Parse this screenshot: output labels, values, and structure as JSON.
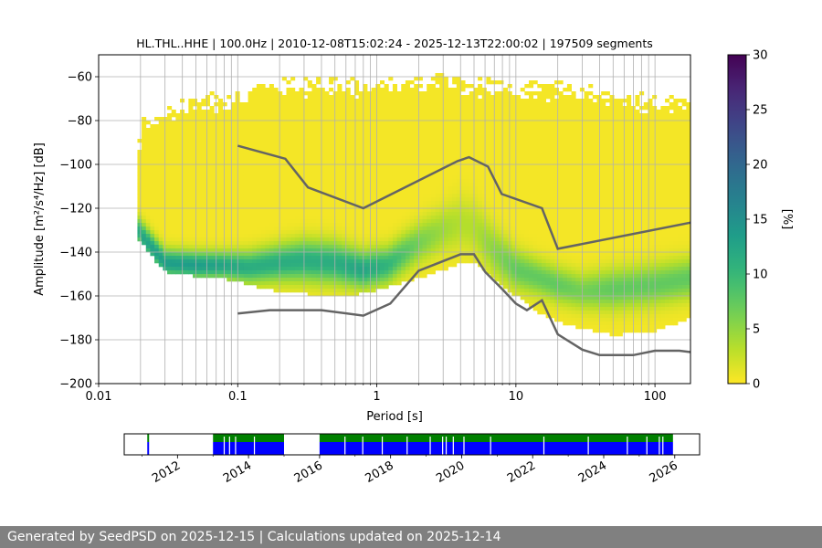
{
  "footer": {
    "text": "Generated by SeedPSD on 2025-12-15 | Calculations updated on 2025-12-14"
  },
  "chart_data": [
    {
      "type": "heatmap",
      "title": "HL.THL..HHE | 100.0Hz | 2010-12-08T15:02:24 - 2025-12-13T22:00:02 | 197509 segments",
      "xlabel": "Period [s]",
      "ylabel": "Amplitude [m²/s⁴/Hz] [dB]",
      "x_scale": "log",
      "xlim": [
        0.01,
        180
      ],
      "ylim": [
        -200,
        -50
      ],
      "x_ticks": [
        {
          "value": 0.01,
          "label": "0.01"
        },
        {
          "value": 0.1,
          "label": "0.1"
        },
        {
          "value": 1,
          "label": "1"
        },
        {
          "value": 10,
          "label": "10"
        },
        {
          "value": 100,
          "label": "100"
        }
      ],
      "y_ticks": [
        -60,
        -80,
        -100,
        -120,
        -140,
        -160,
        -180,
        -200
      ],
      "grid": true,
      "colorbar": {
        "label": "[%]",
        "range": [
          0,
          30
        ],
        "ticks": [
          0,
          5,
          10,
          15,
          20,
          25,
          30
        ],
        "colors": [
          "#fde725",
          "#b5de2b",
          "#6ece58",
          "#35b779",
          "#1f9e89",
          "#26828e",
          "#31688e",
          "#3e4989",
          "#482878",
          "#440154"
        ]
      },
      "density": {
        "x_period": [
          0.019,
          0.02,
          0.03,
          0.05,
          0.08,
          0.12,
          0.2,
          0.3,
          0.5,
          0.8,
          1.2,
          2,
          3,
          4,
          5,
          7,
          10,
          15,
          20,
          30,
          50,
          100,
          180
        ],
        "upper_db": [
          -105,
          -80,
          -75,
          -70,
          -68,
          -65,
          -63,
          -62,
          -62,
          -62,
          -61,
          -61,
          -60,
          -60,
          -62,
          -63,
          -63,
          -63,
          -63,
          -64,
          -68,
          -70,
          -70
        ],
        "lower_db": [
          -133,
          -135,
          -149,
          -151,
          -152,
          -155,
          -158,
          -159,
          -160,
          -159,
          -156,
          -152,
          -148,
          -145,
          -145,
          -152,
          -160,
          -168,
          -172,
          -175,
          -178,
          -176,
          -170
        ],
        "mode_db": [
          -128,
          -132,
          -145,
          -146,
          -146,
          -147,
          -145,
          -144,
          -145,
          -148,
          -146,
          -136,
          -130,
          -127,
          -129,
          -140,
          -148,
          -152,
          -155,
          -158,
          -157,
          -155,
          -152
        ],
        "mode_width_db": [
          5,
          6,
          6,
          6,
          6,
          7,
          8,
          9,
          9,
          8,
          8,
          9,
          10,
          12,
          12,
          11,
          9,
          8,
          8,
          8,
          9,
          9,
          9
        ],
        "mode_peak_percent": [
          10,
          12,
          13,
          13,
          12,
          11,
          11,
          11,
          11,
          12,
          10,
          6,
          4,
          3,
          3,
          5,
          7,
          7,
          7,
          6,
          7,
          7,
          7
        ]
      },
      "series": [
        {
          "color": "#646464",
          "x": [
            0.1,
            0.22,
            0.32,
            0.8,
            3.8,
            4.6,
            6.3,
            7.9,
            15.4,
            20,
            200
          ],
          "y": [
            -91.5,
            -97.4,
            -110.5,
            -120,
            -98.5,
            -96.7,
            -101.0,
            -113.5,
            -120,
            -138.5,
            -126
          ]
        },
        {
          "color": "#646464",
          "x": [
            0.1,
            0.17,
            0.4,
            0.8,
            1.25,
            2,
            4,
            5,
            6,
            8,
            10,
            12,
            15.4,
            20,
            30,
            40,
            70,
            100,
            150,
            200
          ],
          "y": [
            -168,
            -166.5,
            -166.5,
            -169,
            -163.5,
            -148.5,
            -141,
            -141,
            -149,
            -157,
            -163.5,
            -166.5,
            -162,
            -177.5,
            -184.5,
            -187,
            -187,
            -185,
            -185,
            -186
          ]
        }
      ]
    },
    {
      "type": "bar",
      "x_ticks": [
        "2012",
        "2014",
        "2016",
        "2018",
        "2020",
        "2022",
        "2024",
        "2026"
      ],
      "xlim": [
        2010.5,
        2026.7
      ],
      "series": [
        {
          "color": "#008000",
          "intervals": [
            [
              2011.15,
              2011.2
            ],
            [
              2013.0,
              2015.0
            ],
            [
              2016.0,
              2025.95
            ]
          ]
        },
        {
          "color": "#0000ff",
          "intervals": [
            [
              2011.15,
              2011.2
            ],
            [
              2013.0,
              2015.0
            ],
            [
              2016.0,
              2025.95
            ]
          ]
        }
      ],
      "gaps": [
        2013.3,
        2013.45,
        2013.62,
        2014.15,
        2016.7,
        2017.2,
        2017.75,
        2018.45,
        2019.1,
        2019.45,
        2019.55,
        2019.75,
        2020.05,
        2020.8,
        2022.3,
        2023.55,
        2024.65,
        2025.2,
        2025.55,
        2025.65
      ]
    }
  ]
}
